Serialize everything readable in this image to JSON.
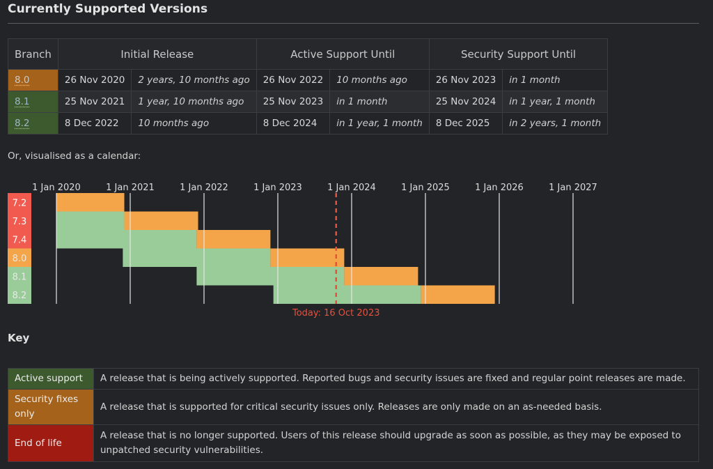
{
  "section_title": "Currently Supported Versions",
  "table": {
    "headers": {
      "branch": "Branch",
      "initial_release": "Initial Release",
      "active_support": "Active Support Until",
      "security_support": "Security Support Until"
    },
    "rows": [
      {
        "branch": "8.0",
        "status": "security",
        "initial_date": "26 Nov 2020",
        "initial_rel": "2 years, 10 months ago",
        "active_date": "26 Nov 2022",
        "active_rel": "10 months ago",
        "security_date": "26 Nov 2023",
        "security_rel": "in 1 month"
      },
      {
        "branch": "8.1",
        "status": "active",
        "initial_date": "25 Nov 2021",
        "initial_rel": "1 year, 10 months ago",
        "active_date": "25 Nov 2023",
        "active_rel": "in 1 month",
        "security_date": "25 Nov 2024",
        "security_rel": "in 1 year, 1 month"
      },
      {
        "branch": "8.2",
        "status": "active",
        "initial_date": "8 Dec 2022",
        "initial_rel": "10 months ago",
        "active_date": "8 Dec 2024",
        "active_rel": "in 1 year, 1 month",
        "security_date": "8 Dec 2025",
        "security_rel": "in 2 years, 1 month"
      }
    ]
  },
  "calendar_caption": "Or, visualised as a calendar:",
  "calendar": {
    "years": [
      "1 Jan 2020",
      "1 Jan 2021",
      "1 Jan 2022",
      "1 Jan 2023",
      "1 Jan 2024",
      "1 Jan 2025",
      "1 Jan 2026",
      "1 Jan 2027"
    ],
    "today_label": "Today: 16 Oct 2023",
    "today_year_fraction": 2023.79,
    "colors": {
      "active": "#99cc99",
      "security": "#f4a54a",
      "eol": "#f05a4f",
      "today": "#e8503e"
    },
    "branches": [
      {
        "name": "7.2",
        "status": "eol",
        "start": 2019.92,
        "active_end": null,
        "security_end": 2020.92
      },
      {
        "name": "7.3",
        "status": "eol",
        "start": 2019.92,
        "active_end": 2020.92,
        "security_end": 2021.92
      },
      {
        "name": "7.4",
        "status": "eol",
        "start": 2019.92,
        "active_end": 2021.9,
        "security_end": 2022.9
      },
      {
        "name": "8.0",
        "status": "security",
        "start": 2020.9,
        "active_end": 2022.9,
        "security_end": 2023.9
      },
      {
        "name": "8.1",
        "status": "active",
        "start": 2021.9,
        "active_end": 2023.9,
        "security_end": 2024.9
      },
      {
        "name": "8.2",
        "status": "active",
        "start": 2022.94,
        "active_end": 2024.94,
        "security_end": 2025.94
      }
    ]
  },
  "key": {
    "title": "Key",
    "items": [
      {
        "label": "Active support",
        "description": "A release that is being actively supported. Reported bugs and security issues are fixed and regular point releases are made."
      },
      {
        "label": "Security fixes only",
        "description": "A release that is supported for critical security issues only. Releases are only made on an as-needed basis."
      },
      {
        "label": "End of life",
        "description": "A release that is no longer supported. Users of this release should upgrade as soon as possible, as they may be exposed to unpatched security vulnerabilities."
      }
    ]
  }
}
